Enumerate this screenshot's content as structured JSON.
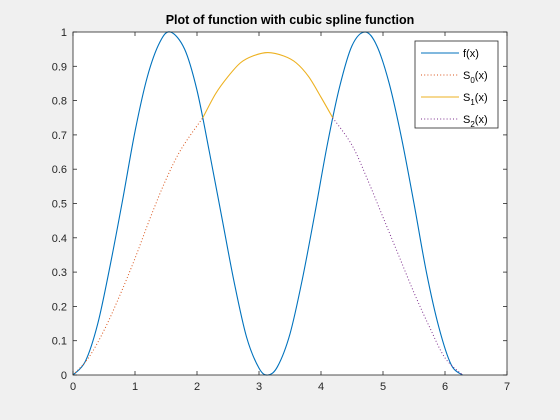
{
  "chart_data": {
    "type": "line",
    "title": "Plot of function with cubic spline function",
    "xlabel": "",
    "ylabel": "",
    "xlim": [
      0,
      7
    ],
    "ylim": [
      0,
      1
    ],
    "x_ticks": [
      "0",
      "1",
      "2",
      "3",
      "4",
      "5",
      "6",
      "7"
    ],
    "y_ticks": [
      "0",
      "0.1",
      "0.2",
      "0.3",
      "0.4",
      "0.5",
      "0.6",
      "0.7",
      "0.8",
      "0.9",
      "1"
    ],
    "grid": false,
    "legend_position": "top-right",
    "legend_labels": [
      {
        "base": "f(x)",
        "sub": "",
        "tail": ""
      },
      {
        "base": "S",
        "sub": "0",
        "tail": "(x)"
      },
      {
        "base": "S",
        "sub": "1",
        "tail": "(x)"
      },
      {
        "base": "S",
        "sub": "2",
        "tail": "(x)"
      }
    ],
    "series": [
      {
        "id": "f",
        "color": "#0072BD",
        "style": "solid",
        "x": [
          0,
          0.2,
          0.4,
          0.6,
          0.8,
          1.0,
          1.2,
          1.4,
          1.571,
          1.8,
          2.0,
          2.2,
          2.4,
          2.6,
          2.8,
          3.0,
          3.142,
          3.3,
          3.5,
          3.7,
          3.9,
          4.1,
          4.3,
          4.5,
          4.712,
          4.9,
          5.1,
          5.3,
          5.5,
          5.7,
          5.9,
          6.1,
          6.283
        ],
        "y": [
          0,
          0.04,
          0.15,
          0.32,
          0.51,
          0.71,
          0.87,
          0.97,
          1.0,
          0.95,
          0.83,
          0.65,
          0.46,
          0.27,
          0.11,
          0.02,
          0,
          0.025,
          0.12,
          0.28,
          0.47,
          0.67,
          0.84,
          0.96,
          1.0,
          0.96,
          0.85,
          0.69,
          0.5,
          0.3,
          0.14,
          0.03,
          0
        ]
      },
      {
        "id": "s0",
        "color": "#D95319",
        "style": "dotted",
        "x": [
          0,
          0.25,
          0.5,
          0.75,
          1.0,
          1.25,
          1.5,
          1.75,
          2.094
        ],
        "y": [
          0,
          0.05,
          0.13,
          0.23,
          0.34,
          0.46,
          0.57,
          0.66,
          0.75
        ]
      },
      {
        "id": "s1",
        "color": "#EDB120",
        "style": "solid",
        "x": [
          2.094,
          2.3,
          2.5,
          2.7,
          2.9,
          3.142,
          3.4,
          3.6,
          3.8,
          4.0,
          4.189
        ],
        "y": [
          0.75,
          0.82,
          0.87,
          0.91,
          0.93,
          0.94,
          0.93,
          0.91,
          0.87,
          0.81,
          0.75
        ]
      },
      {
        "id": "s2",
        "color": "#7E2F8E",
        "style": "dotted",
        "x": [
          4.189,
          4.5,
          4.75,
          5.0,
          5.25,
          5.5,
          5.75,
          6.0,
          6.283
        ],
        "y": [
          0.75,
          0.67,
          0.57,
          0.46,
          0.35,
          0.24,
          0.14,
          0.05,
          0
        ]
      }
    ]
  }
}
